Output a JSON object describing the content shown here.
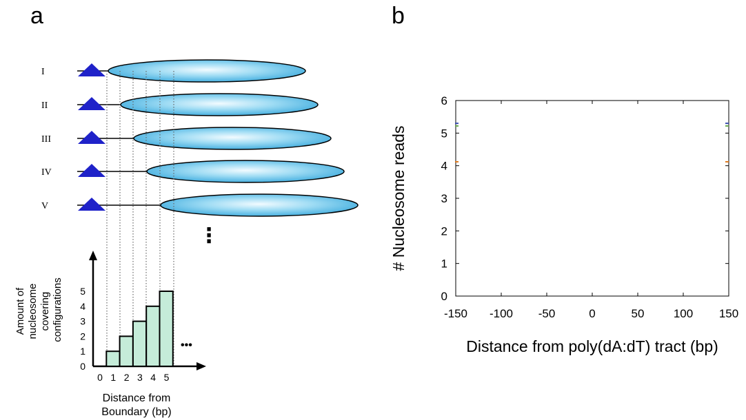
{
  "panel_a": {
    "label": "a",
    "configurations": [
      "I",
      "II",
      "III",
      "IV",
      "V"
    ],
    "ellipsis": "⋮",
    "histogram": {
      "ylabel_lines": [
        "Amount of",
        "nucleosome",
        "covering",
        "configurations"
      ],
      "xlabel_lines": [
        "Distance from",
        "Boundary (bp)"
      ],
      "more": "•••"
    }
  },
  "panel_b": {
    "label": "b"
  },
  "chart_data": [
    {
      "type": "bar",
      "categories": [
        "0",
        "1",
        "2",
        "3",
        "4",
        "5"
      ],
      "values": [
        0,
        1,
        2,
        3,
        4,
        5
      ],
      "xlabel": "Distance from Boundary (bp)",
      "ylabel": "Amount of nucleosome covering configurations",
      "yticks": [
        "0",
        "1",
        "2",
        "3",
        "4",
        "5"
      ],
      "ylim": [
        0,
        5.5
      ]
    },
    {
      "type": "line",
      "xlabel": "Distance from poly(dA:dT) tract (bp)",
      "ylabel": "# Nucleosome reads",
      "xlim": [
        -150,
        150
      ],
      "ylim": [
        0,
        6
      ],
      "xticks": [
        "-150",
        "-100",
        "-50",
        "0",
        "50",
        "100",
        "150"
      ],
      "yticks": [
        "0",
        "1",
        "2",
        "3",
        "4",
        "5",
        "6"
      ],
      "grid": false,
      "series": [
        {
          "color": "#3a4fb0",
          "x": [
            -150,
            150
          ],
          "y": [
            5.3,
            5.3
          ]
        },
        {
          "color": "#6aa84f",
          "x": [
            -150,
            150
          ],
          "y": [
            5.22,
            5.22
          ]
        },
        {
          "color": "#e07b20",
          "x": [
            -150,
            150
          ],
          "y": [
            4.12,
            4.12
          ]
        }
      ]
    }
  ]
}
